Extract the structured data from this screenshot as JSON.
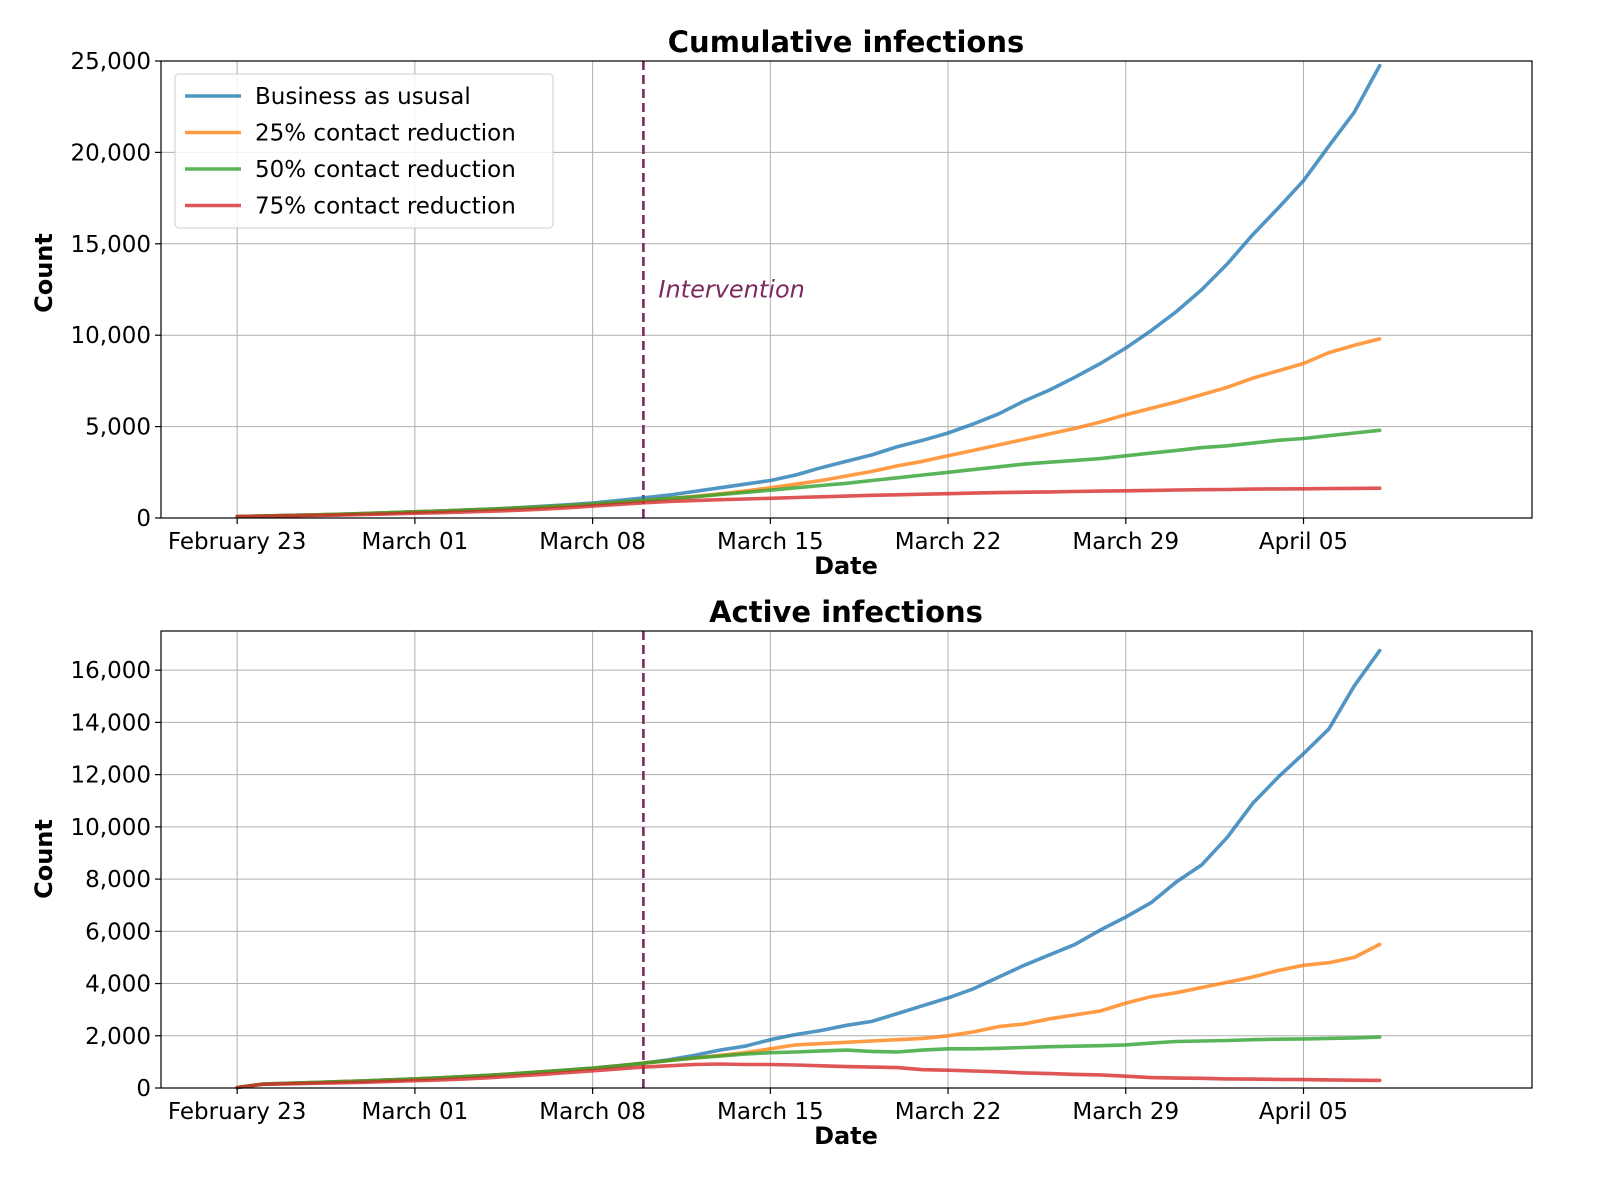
{
  "chart_data": [
    {
      "type": "line",
      "title": "Cumulative infections",
      "xlabel": "Date",
      "ylabel": "Count",
      "xlim": [
        "2020-02-20",
        "2020-04-14"
      ],
      "ylim": [
        0,
        25000
      ],
      "yticks": [
        0,
        5000,
        10000,
        15000,
        20000,
        25000
      ],
      "ytick_labels": [
        "0",
        "5,000",
        "10,000",
        "15,000",
        "20,000",
        "25,000"
      ],
      "xticks": [
        "2020-02-23",
        "2020-03-01",
        "2020-03-08",
        "2020-03-15",
        "2020-03-22",
        "2020-03-29",
        "2020-04-05"
      ],
      "xtick_labels": [
        "February 23",
        "March 01",
        "March 08",
        "March 15",
        "March 22",
        "March 29",
        "April 05"
      ],
      "grid": true,
      "legend": {
        "placement": "top-left",
        "entries": [
          "Business as ususal",
          "25% contact reduction",
          "50% contact reduction",
          "75% contact reduction"
        ]
      },
      "annotation": {
        "text": "Intervention",
        "x": "2020-03-10",
        "y": 12500,
        "color": "#7b2a5e"
      },
      "vline": {
        "x": "2020-03-10",
        "style": "dashed",
        "color": "#7b2a5e"
      },
      "x": [
        "2020-02-23",
        "2020-02-24",
        "2020-02-25",
        "2020-02-26",
        "2020-02-27",
        "2020-02-28",
        "2020-02-29",
        "2020-03-01",
        "2020-03-02",
        "2020-03-03",
        "2020-03-04",
        "2020-03-05",
        "2020-03-06",
        "2020-03-07",
        "2020-03-08",
        "2020-03-09",
        "2020-03-10",
        "2020-03-11",
        "2020-03-12",
        "2020-03-13",
        "2020-03-14",
        "2020-03-15",
        "2020-03-16",
        "2020-03-17",
        "2020-03-18",
        "2020-03-19",
        "2020-03-20",
        "2020-03-21",
        "2020-03-22",
        "2020-03-23",
        "2020-03-24",
        "2020-03-25",
        "2020-03-26",
        "2020-03-27",
        "2020-03-28",
        "2020-03-29",
        "2020-03-30",
        "2020-03-31",
        "2020-04-01",
        "2020-04-02",
        "2020-04-03",
        "2020-04-04",
        "2020-04-05",
        "2020-04-06",
        "2020-04-07",
        "2020-04-08"
      ],
      "series": [
        {
          "name": "Business as ususal",
          "color": "#1f77b4",
          "values": [
            80,
            110,
            140,
            170,
            200,
            240,
            290,
            340,
            380,
            430,
            490,
            560,
            640,
            720,
            820,
            950,
            1100,
            1250,
            1450,
            1650,
            1850,
            2050,
            2350,
            2750,
            3100,
            3450,
            3900,
            4250,
            4650,
            5150,
            5700,
            6400,
            7000,
            7700,
            8450,
            9300,
            10250,
            11300,
            12500,
            13900,
            15500,
            16950,
            18450,
            20350,
            22200,
            24750
          ]
        },
        {
          "name": "25% contact reduction",
          "color": "#ff7f0e",
          "values": [
            80,
            110,
            140,
            170,
            200,
            240,
            290,
            340,
            380,
            430,
            480,
            540,
            600,
            680,
            760,
            860,
            960,
            1060,
            1180,
            1320,
            1470,
            1650,
            1850,
            2050,
            2300,
            2550,
            2850,
            3100,
            3400,
            3700,
            4000,
            4300,
            4600,
            4900,
            5250,
            5650,
            6000,
            6350,
            6750,
            7150,
            7650,
            8050,
            8450,
            9050,
            9450,
            9800
          ]
        },
        {
          "name": "50% contact reduction",
          "color": "#2ca02c",
          "values": [
            80,
            110,
            140,
            170,
            200,
            240,
            290,
            340,
            380,
            430,
            480,
            540,
            600,
            680,
            760,
            860,
            960,
            1060,
            1160,
            1280,
            1400,
            1520,
            1650,
            1780,
            1900,
            2050,
            2200,
            2350,
            2500,
            2650,
            2800,
            2950,
            3050,
            3150,
            3250,
            3400,
            3550,
            3700,
            3850,
            3950,
            4100,
            4250,
            4350,
            4500,
            4650,
            4800
          ]
        },
        {
          "name": "75% contact reduction",
          "color": "#d62728",
          "values": [
            80,
            100,
            120,
            140,
            160,
            190,
            220,
            260,
            290,
            330,
            370,
            420,
            480,
            560,
            650,
            740,
            830,
            900,
            950,
            1000,
            1040,
            1080,
            1120,
            1160,
            1200,
            1240,
            1270,
            1300,
            1330,
            1360,
            1390,
            1410,
            1430,
            1450,
            1470,
            1490,
            1510,
            1530,
            1550,
            1560,
            1580,
            1590,
            1600,
            1610,
            1620,
            1630
          ]
        }
      ]
    },
    {
      "type": "line",
      "title": "Active infections",
      "xlabel": "Date",
      "ylabel": "Count",
      "xlim": [
        "2020-02-20",
        "2020-04-14"
      ],
      "ylim": [
        0,
        17500
      ],
      "yticks": [
        0,
        2000,
        4000,
        6000,
        8000,
        10000,
        12000,
        14000,
        16000
      ],
      "ytick_labels": [
        "0",
        "2,000",
        "4,000",
        "6,000",
        "8,000",
        "10,000",
        "12,000",
        "14,000",
        "16,000"
      ],
      "xticks": [
        "2020-02-23",
        "2020-03-01",
        "2020-03-08",
        "2020-03-15",
        "2020-03-22",
        "2020-03-29",
        "2020-04-05"
      ],
      "xtick_labels": [
        "February 23",
        "March 01",
        "March 08",
        "March 15",
        "March 22",
        "March 29",
        "April 05"
      ],
      "grid": true,
      "vline": {
        "x": "2020-03-10",
        "style": "dashed",
        "color": "#7b2a5e"
      },
      "x": [
        "2020-02-23",
        "2020-02-24",
        "2020-02-25",
        "2020-02-26",
        "2020-02-27",
        "2020-02-28",
        "2020-02-29",
        "2020-03-01",
        "2020-03-02",
        "2020-03-03",
        "2020-03-04",
        "2020-03-05",
        "2020-03-06",
        "2020-03-07",
        "2020-03-08",
        "2020-03-09",
        "2020-03-10",
        "2020-03-11",
        "2020-03-12",
        "2020-03-13",
        "2020-03-14",
        "2020-03-15",
        "2020-03-16",
        "2020-03-17",
        "2020-03-18",
        "2020-03-19",
        "2020-03-20",
        "2020-03-21",
        "2020-03-22",
        "2020-03-23",
        "2020-03-24",
        "2020-03-25",
        "2020-03-26",
        "2020-03-27",
        "2020-03-28",
        "2020-03-29",
        "2020-03-30",
        "2020-03-31",
        "2020-04-01",
        "2020-04-02",
        "2020-04-03",
        "2020-04-04",
        "2020-04-05",
        "2020-04-06",
        "2020-04-07",
        "2020-04-08"
      ],
      "series": [
        {
          "name": "Business as ususal",
          "color": "#1f77b4",
          "values": [
            20,
            150,
            180,
            210,
            240,
            270,
            310,
            350,
            390,
            440,
            490,
            550,
            620,
            690,
            760,
            850,
            950,
            1080,
            1250,
            1450,
            1600,
            1850,
            2050,
            2200,
            2400,
            2550,
            2850,
            3150,
            3450,
            3800,
            4250,
            4700,
            5100,
            5500,
            6050,
            6550,
            7100,
            7900,
            8550,
            9600,
            10900,
            11900,
            12800,
            13750,
            15400,
            16750
          ]
        },
        {
          "name": "25% contact reduction",
          "color": "#ff7f0e",
          "values": [
            20,
            150,
            180,
            210,
            240,
            270,
            310,
            350,
            390,
            440,
            490,
            550,
            620,
            690,
            760,
            850,
            950,
            1050,
            1150,
            1250,
            1350,
            1500,
            1650,
            1700,
            1750,
            1800,
            1850,
            1900,
            2000,
            2150,
            2350,
            2450,
            2650,
            2800,
            2950,
            3250,
            3500,
            3650,
            3850,
            4050,
            4250,
            4500,
            4700,
            4800,
            5000,
            5500
          ]
        },
        {
          "name": "50% contact reduction",
          "color": "#2ca02c",
          "values": [
            20,
            150,
            180,
            210,
            240,
            270,
            310,
            350,
            390,
            440,
            490,
            550,
            620,
            690,
            760,
            850,
            950,
            1050,
            1150,
            1220,
            1300,
            1350,
            1380,
            1420,
            1450,
            1400,
            1380,
            1450,
            1500,
            1500,
            1520,
            1550,
            1580,
            1600,
            1620,
            1650,
            1720,
            1780,
            1800,
            1820,
            1850,
            1870,
            1880,
            1900,
            1920,
            1950
          ]
        },
        {
          "name": "75% contact reduction",
          "color": "#d62728",
          "values": [
            20,
            140,
            160,
            180,
            200,
            220,
            250,
            280,
            310,
            350,
            400,
            460,
            520,
            590,
            660,
            730,
            800,
            850,
            900,
            920,
            900,
            900,
            880,
            850,
            820,
            800,
            780,
            700,
            680,
            650,
            620,
            580,
            550,
            520,
            500,
            450,
            400,
            380,
            370,
            350,
            340,
            330,
            320,
            310,
            300,
            290
          ]
        }
      ]
    }
  ]
}
